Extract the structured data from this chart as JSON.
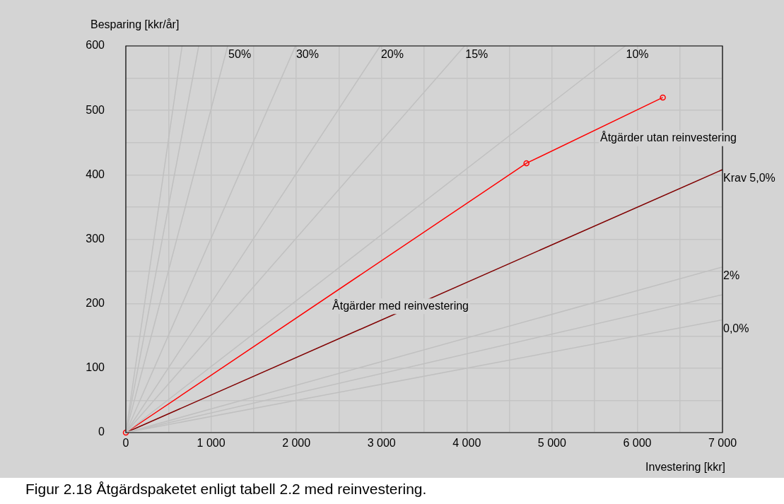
{
  "chart_data": {
    "type": "line",
    "xlabel": "Investering [kkr]",
    "ylabel": "Besparing [kkr/år]",
    "xlim": [
      0,
      7000
    ],
    "ylim": [
      0,
      600
    ],
    "xticks": [
      0,
      {
        "value": 500,
        "label": null
      },
      {
        "value": 1000,
        "label": "1 000"
      },
      {
        "value": 1500,
        "label": null
      },
      {
        "value": 2000,
        "label": "2 000"
      },
      {
        "value": 2500,
        "label": null
      },
      {
        "value": 3000,
        "label": "3 000"
      },
      {
        "value": 3500,
        "label": null
      },
      {
        "value": 4000,
        "label": "4 000"
      },
      {
        "value": 4500,
        "label": null
      },
      {
        "value": 5000,
        "label": "5 000"
      },
      {
        "value": 5500,
        "label": null
      },
      {
        "value": 6000,
        "label": "6 000"
      },
      {
        "value": 6500,
        "label": null
      },
      {
        "value": 7000,
        "label": "7 000"
      }
    ],
    "yticks": [
      0,
      {
        "value": 50,
        "label": null
      },
      100,
      {
        "value": 150,
        "label": null
      },
      200,
      {
        "value": 250,
        "label": null
      },
      300,
      {
        "value": 350,
        "label": null
      },
      400,
      {
        "value": 450,
        "label": null
      },
      500,
      {
        "value": 550,
        "label": null
      },
      600
    ],
    "grid": true,
    "legend": false,
    "marker": "none",
    "series": [
      {
        "color": "#c0c0c0",
        "x": [
          0,
          660
        ],
        "values": [
          0,
          600
        ]
      },
      {
        "color": "#c0c0c0",
        "x": [
          0,
          855
        ],
        "values": [
          0,
          600
        ]
      },
      {
        "name": "50%",
        "color": "#c0c0c0",
        "x": [
          0,
          1195
        ],
        "values": [
          0,
          600
        ]
      },
      {
        "name": "30%",
        "color": "#c0c0c0",
        "x": [
          0,
          1990
        ],
        "values": [
          0,
          600
        ]
      },
      {
        "name": "20%",
        "color": "#c0c0c0",
        "x": [
          0,
          2985
        ],
        "values": [
          0,
          600
        ]
      },
      {
        "name": "15%",
        "color": "#c0c0c0",
        "x": [
          0,
          3975
        ],
        "values": [
          0,
          600
        ]
      },
      {
        "name": "10%",
        "color": "#c0c0c0",
        "x": [
          0,
          5860
        ],
        "values": [
          0,
          600
        ]
      },
      {
        "name": "2%",
        "color": "#c0c0c0",
        "x": [
          0,
          7000
        ],
        "values": [
          0,
          257
        ]
      },
      {
        "color": "#c0c0c0",
        "x": [
          0,
          7000
        ],
        "values": [
          0,
          214
        ]
      },
      {
        "name": "0,0%",
        "color": "#c0c0c0",
        "x": [
          0,
          7000
        ],
        "values": [
          0,
          175
        ]
      },
      {
        "name": "Krav 5,0%",
        "color": "#800000",
        "x": [
          0,
          7000
        ],
        "values": [
          0,
          408
        ]
      },
      {
        "color": "#ff0000",
        "marker": "circle",
        "x": [
          0,
          4700,
          6300
        ],
        "values": [
          0,
          418,
          520
        ]
      }
    ],
    "annotations": [
      "Åtgärder utan reinvestering",
      "Åtgärder med reinvestering",
      "Figur 2.18  Åtgärdspaketet enligt tabell 2.2 med reinvestering."
    ]
  }
}
